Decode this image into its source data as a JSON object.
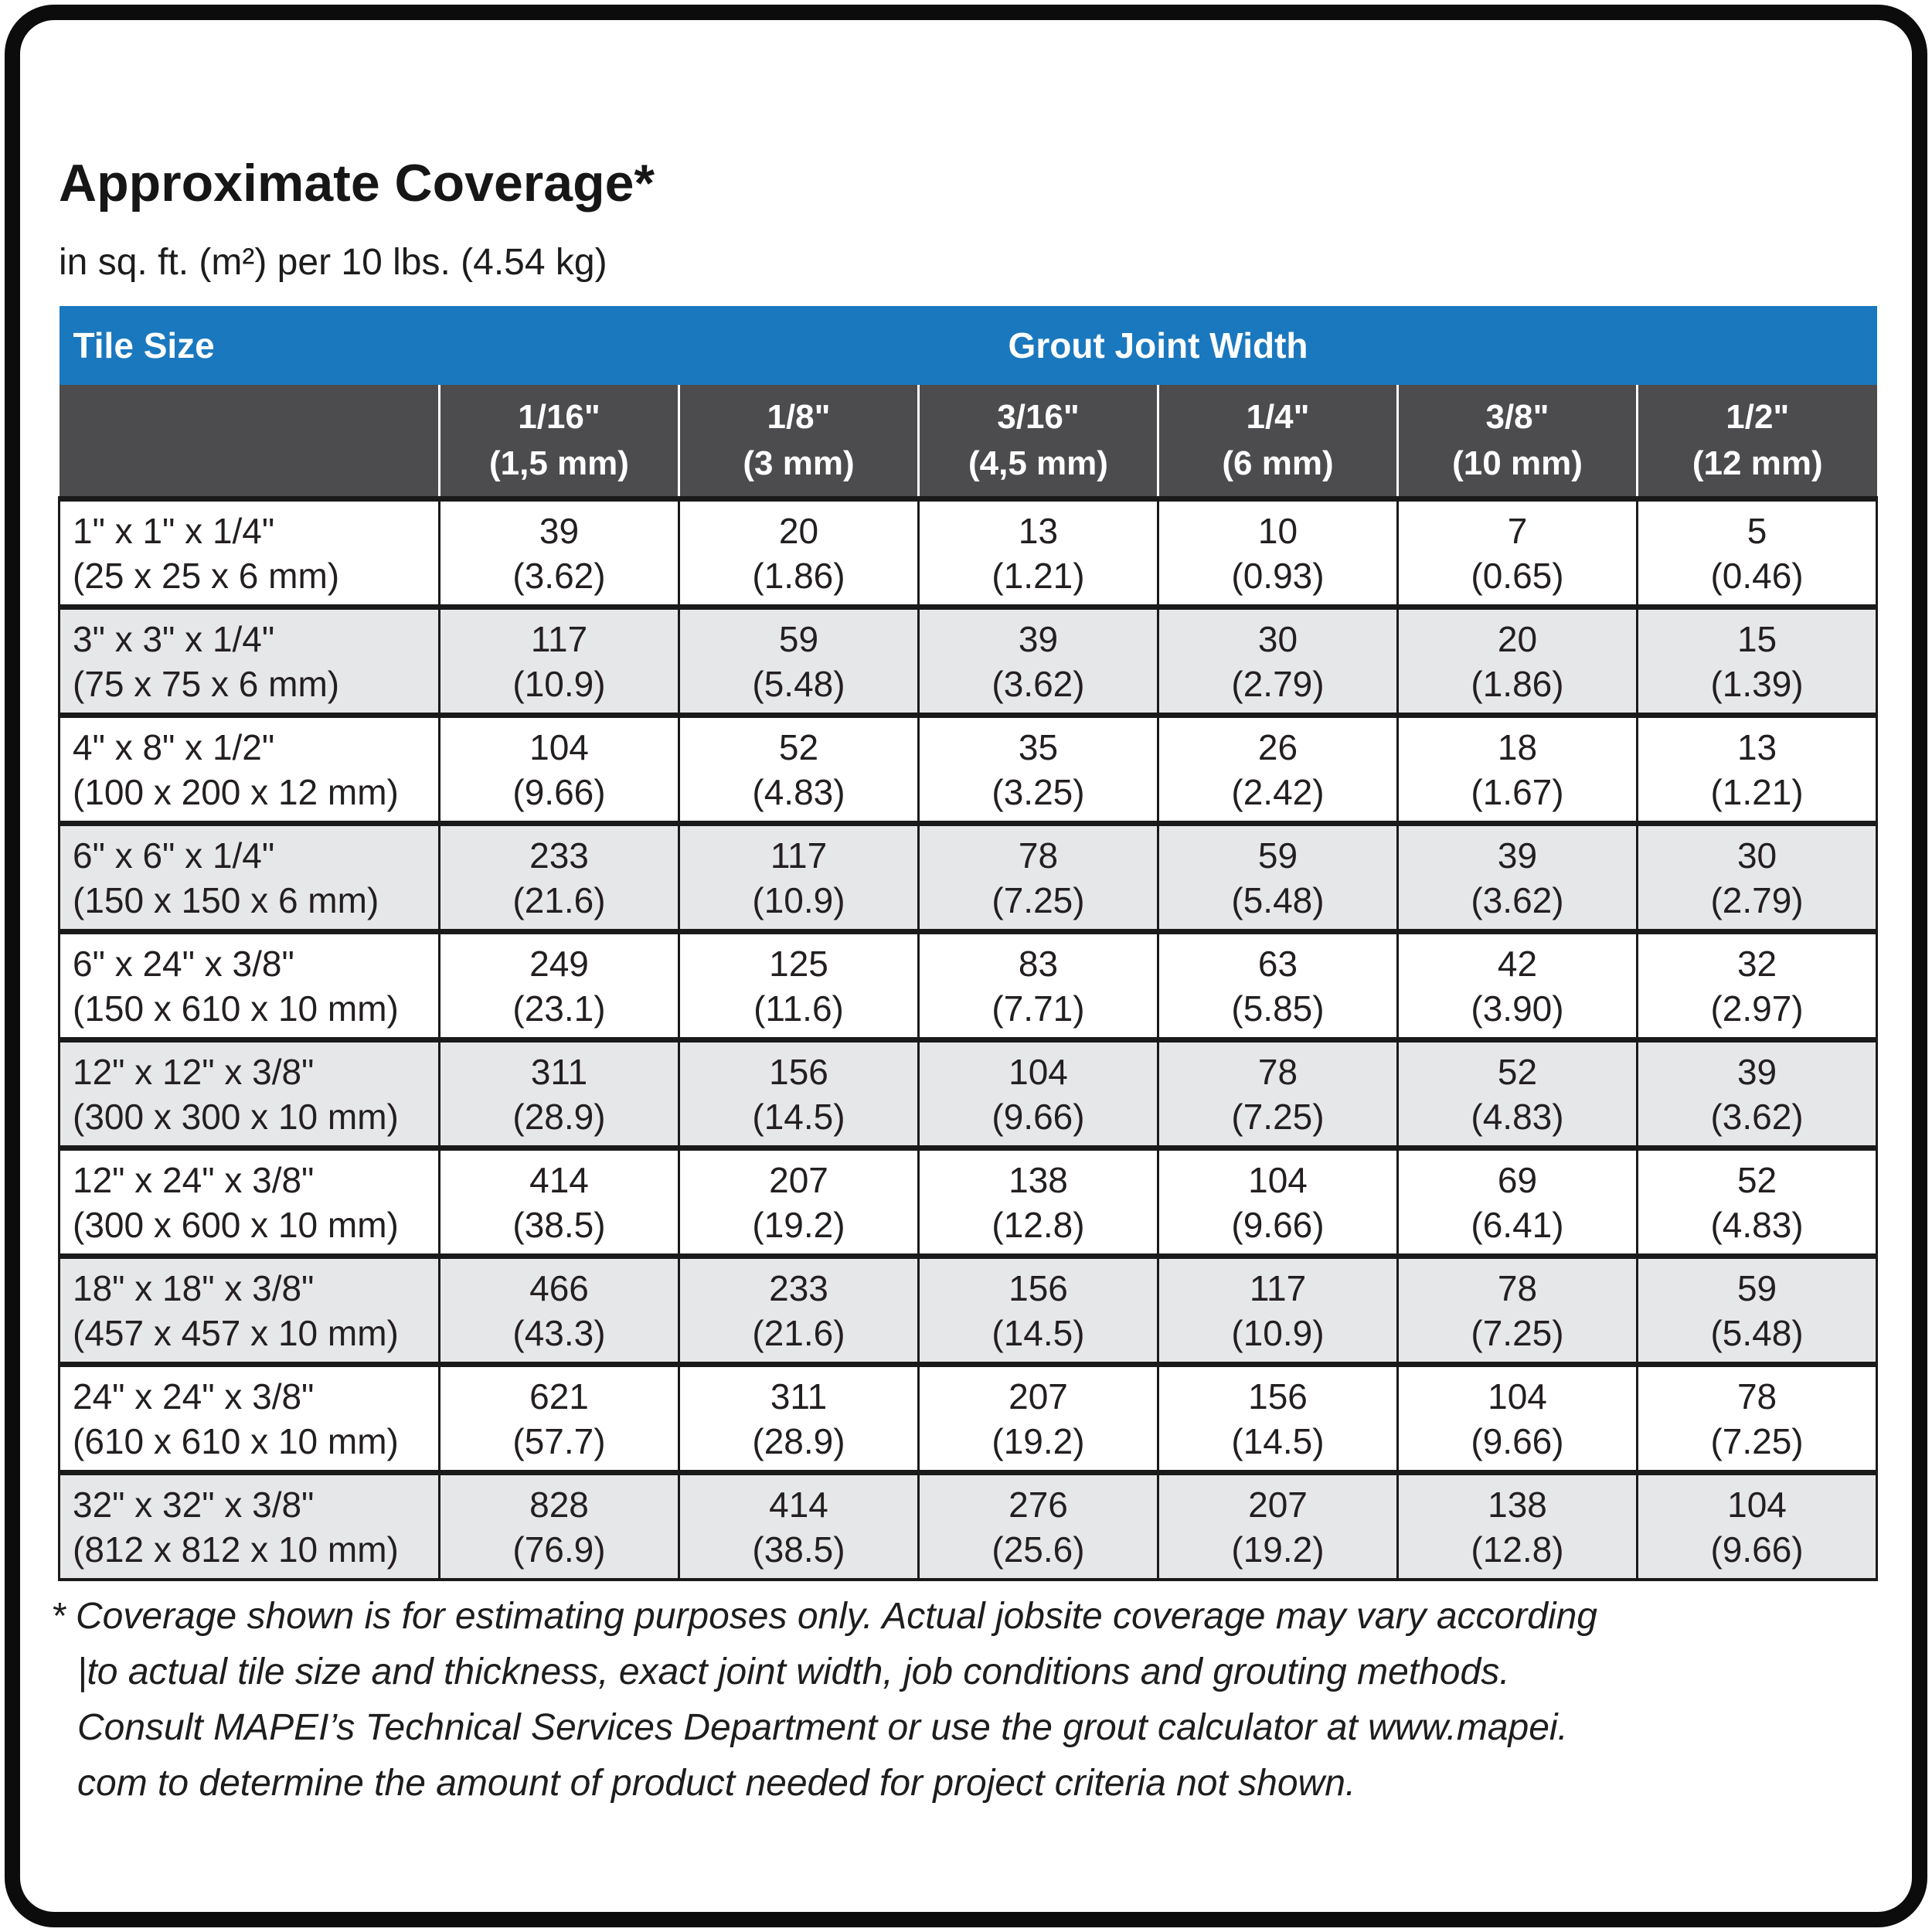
{
  "page": {
    "title": "Approximate Coverage*",
    "subtitle": "in sq. ft. (m²) per 10 lbs. (4.54 kg)"
  },
  "table": {
    "tile_size_header": "Tile Size",
    "grout_header": "Grout Joint Width",
    "columns": [
      {
        "inch": "1/16\"",
        "mm": "(1,5 mm)"
      },
      {
        "inch": "1/8\"",
        "mm": "(3 mm)"
      },
      {
        "inch": "3/16\"",
        "mm": "(4,5 mm)"
      },
      {
        "inch": "1/4\"",
        "mm": "(6 mm)"
      },
      {
        "inch": "3/8\"",
        "mm": "(10 mm)"
      },
      {
        "inch": "1/2\"",
        "mm": "(12 mm)"
      }
    ],
    "rows": [
      {
        "tile_in": "1\" x 1\" x 1/4\"",
        "tile_mm": "(25 x 25 x 6 mm)",
        "values": [
          {
            "sqft": "39",
            "m2": "(3.62)"
          },
          {
            "sqft": "20",
            "m2": "(1.86)"
          },
          {
            "sqft": "13",
            "m2": "(1.21)"
          },
          {
            "sqft": "10",
            "m2": "(0.93)"
          },
          {
            "sqft": "7",
            "m2": "(0.65)"
          },
          {
            "sqft": "5",
            "m2": "(0.46)"
          }
        ]
      },
      {
        "tile_in": "3\" x 3\" x 1/4\"",
        "tile_mm": "(75 x 75 x 6 mm)",
        "values": [
          {
            "sqft": "117",
            "m2": "(10.9)"
          },
          {
            "sqft": "59",
            "m2": "(5.48)"
          },
          {
            "sqft": "39",
            "m2": "(3.62)"
          },
          {
            "sqft": "30",
            "m2": "(2.79)"
          },
          {
            "sqft": "20",
            "m2": "(1.86)"
          },
          {
            "sqft": "15",
            "m2": "(1.39)"
          }
        ]
      },
      {
        "tile_in": "4\" x 8\" x 1/2\"",
        "tile_mm": "(100 x 200 x 12 mm)",
        "values": [
          {
            "sqft": "104",
            "m2": "(9.66)"
          },
          {
            "sqft": "52",
            "m2": "(4.83)"
          },
          {
            "sqft": "35",
            "m2": "(3.25)"
          },
          {
            "sqft": "26",
            "m2": "(2.42)"
          },
          {
            "sqft": "18",
            "m2": "(1.67)"
          },
          {
            "sqft": "13",
            "m2": "(1.21)"
          }
        ]
      },
      {
        "tile_in": "6\" x 6\" x 1/4\"",
        "tile_mm": "(150 x 150 x 6 mm)",
        "values": [
          {
            "sqft": "233",
            "m2": "(21.6)"
          },
          {
            "sqft": "117",
            "m2": "(10.9)"
          },
          {
            "sqft": "78",
            "m2": "(7.25)"
          },
          {
            "sqft": "59",
            "m2": "(5.48)"
          },
          {
            "sqft": "39",
            "m2": "(3.62)"
          },
          {
            "sqft": "30",
            "m2": "(2.79)"
          }
        ]
      },
      {
        "tile_in": "6\" x 24\" x 3/8\"",
        "tile_mm": "(150 x 610 x 10 mm)",
        "values": [
          {
            "sqft": "249",
            "m2": "(23.1)"
          },
          {
            "sqft": "125",
            "m2": "(11.6)"
          },
          {
            "sqft": "83",
            "m2": "(7.71)"
          },
          {
            "sqft": "63",
            "m2": "(5.85)"
          },
          {
            "sqft": "42",
            "m2": "(3.90)"
          },
          {
            "sqft": "32",
            "m2": "(2.97)"
          }
        ]
      },
      {
        "tile_in": "12\" x 12\" x 3/8\"",
        "tile_mm": "(300 x 300 x 10 mm)",
        "values": [
          {
            "sqft": "311",
            "m2": "(28.9)"
          },
          {
            "sqft": "156",
            "m2": "(14.5)"
          },
          {
            "sqft": "104",
            "m2": "(9.66)"
          },
          {
            "sqft": "78",
            "m2": "(7.25)"
          },
          {
            "sqft": "52",
            "m2": "(4.83)"
          },
          {
            "sqft": "39",
            "m2": "(3.62)"
          }
        ]
      },
      {
        "tile_in": "12\" x 24\" x 3/8\"",
        "tile_mm": "(300 x 600 x 10 mm)",
        "values": [
          {
            "sqft": "414",
            "m2": "(38.5)"
          },
          {
            "sqft": "207",
            "m2": "(19.2)"
          },
          {
            "sqft": "138",
            "m2": "(12.8)"
          },
          {
            "sqft": "104",
            "m2": "(9.66)"
          },
          {
            "sqft": "69",
            "m2": "(6.41)"
          },
          {
            "sqft": "52",
            "m2": "(4.83)"
          }
        ]
      },
      {
        "tile_in": "18\" x 18\" x 3/8\"",
        "tile_mm": "(457 x 457 x 10 mm)",
        "values": [
          {
            "sqft": "466",
            "m2": "(43.3)"
          },
          {
            "sqft": "233",
            "m2": "(21.6)"
          },
          {
            "sqft": "156",
            "m2": "(14.5)"
          },
          {
            "sqft": "117",
            "m2": "(10.9)"
          },
          {
            "sqft": "78",
            "m2": "(7.25)"
          },
          {
            "sqft": "59",
            "m2": "(5.48)"
          }
        ]
      },
      {
        "tile_in": "24\" x 24\" x 3/8\"",
        "tile_mm": "(610 x 610 x 10 mm)",
        "values": [
          {
            "sqft": "621",
            "m2": "(57.7)"
          },
          {
            "sqft": "311",
            "m2": "(28.9)"
          },
          {
            "sqft": "207",
            "m2": "(19.2)"
          },
          {
            "sqft": "156",
            "m2": "(14.5)"
          },
          {
            "sqft": "104",
            "m2": "(9.66)"
          },
          {
            "sqft": "78",
            "m2": "(7.25)"
          }
        ]
      },
      {
        "tile_in": "32\" x 32\" x 3/8\"",
        "tile_mm": "(812 x 812 x 10 mm)",
        "values": [
          {
            "sqft": "828",
            "m2": "(76.9)"
          },
          {
            "sqft": "414",
            "m2": "(38.5)"
          },
          {
            "sqft": "276",
            "m2": "(25.6)"
          },
          {
            "sqft": "207",
            "m2": "(19.2)"
          },
          {
            "sqft": "138",
            "m2": "(12.8)"
          },
          {
            "sqft": "104",
            "m2": "(9.66)"
          }
        ]
      }
    ]
  },
  "footnote": {
    "lines": [
      "* Coverage shown is for estimating purposes only. Actual jobsite coverage may vary according",
      "|to actual tile size and thickness, exact joint width, job conditions and grouting methods.",
      "Consult MAPEI’s Technical Services Department or use the grout calculator at www.mapei.",
      "com to determine the amount of product needed for project criteria not shown."
    ]
  },
  "colors": {
    "header_blue": "#1a78be",
    "header_dark_gray": "#4c4c4e",
    "row_alt_gray": "#e6e7e8",
    "grid_black": "#1a1a1a",
    "text": "#231f20"
  }
}
